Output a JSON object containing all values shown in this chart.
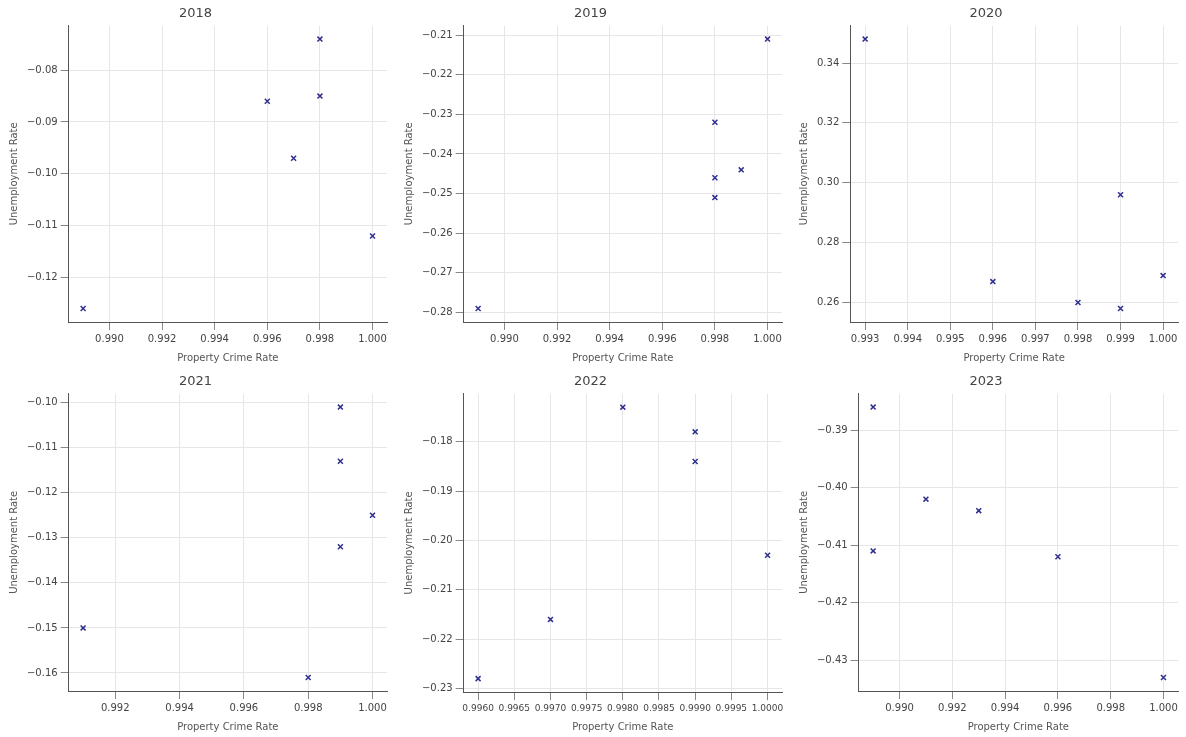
{
  "chart_data": [
    {
      "type": "scatter",
      "title": "2018",
      "xlabel": "Property Crime Rate",
      "ylabel": "Unemployment Rate",
      "marker": "cross",
      "grid": true,
      "legend": false,
      "series": [
        {
          "color": "#2f2f8f",
          "x": [
            0.998,
            0.996,
            0.998,
            0.997,
            1.0,
            0.989
          ],
          "values": [
            -0.074,
            -0.086,
            -0.085,
            -0.097,
            -0.112,
            -0.126
          ]
        }
      ],
      "xlim": [
        0.98845,
        1.00055
      ],
      "ylim": [
        -0.1286,
        -0.0714
      ],
      "xticks": [
        {
          "value": 0.99,
          "label": "0.990"
        },
        {
          "value": 0.992,
          "label": "0.992"
        },
        {
          "value": 0.994,
          "label": "0.994"
        },
        {
          "value": 0.996,
          "label": "0.996"
        },
        {
          "value": 0.998,
          "label": "0.998"
        },
        {
          "value": 1.0,
          "label": "1.000"
        }
      ],
      "yticks": [
        {
          "value": -0.12,
          "label": "−0.12"
        },
        {
          "value": -0.11,
          "label": "−0.11"
        },
        {
          "value": -0.1,
          "label": "−0.10"
        },
        {
          "value": -0.09,
          "label": "−0.09"
        },
        {
          "value": -0.08,
          "label": "−0.08"
        }
      ]
    },
    {
      "type": "scatter",
      "title": "2019",
      "xlabel": "Property Crime Rate",
      "ylabel": "Unemployment Rate",
      "marker": "cross",
      "grid": true,
      "legend": false,
      "series": [
        {
          "color": "#2f2f8f",
          "x": [
            1.0,
            0.998,
            0.998,
            0.998,
            0.999,
            0.989
          ],
          "values": [
            -0.211,
            -0.232,
            -0.246,
            -0.251,
            -0.244,
            -0.279
          ]
        }
      ],
      "xlim": [
        0.98845,
        1.00055
      ],
      "ylim": [
        -0.2824,
        -0.2076
      ],
      "xticks": [
        {
          "value": 0.99,
          "label": "0.990"
        },
        {
          "value": 0.992,
          "label": "0.992"
        },
        {
          "value": 0.994,
          "label": "0.994"
        },
        {
          "value": 0.996,
          "label": "0.996"
        },
        {
          "value": 0.998,
          "label": "0.998"
        },
        {
          "value": 1.0,
          "label": "1.000"
        }
      ],
      "yticks": [
        {
          "value": -0.28,
          "label": "−0.28"
        },
        {
          "value": -0.27,
          "label": "−0.27"
        },
        {
          "value": -0.26,
          "label": "−0.26"
        },
        {
          "value": -0.25,
          "label": "−0.25"
        },
        {
          "value": -0.24,
          "label": "−0.24"
        },
        {
          "value": -0.23,
          "label": "−0.23"
        },
        {
          "value": -0.22,
          "label": "−0.22"
        },
        {
          "value": -0.21,
          "label": "−0.21"
        }
      ]
    },
    {
      "type": "scatter",
      "title": "2020",
      "xlabel": "Property Crime Rate",
      "ylabel": "Unemployment Rate",
      "marker": "cross",
      "grid": true,
      "legend": false,
      "series": [
        {
          "color": "#2f2f8f",
          "x": [
            0.993,
            0.996,
            0.998,
            0.999,
            0.999,
            1.0
          ],
          "values": [
            0.348,
            0.267,
            0.26,
            0.296,
            0.258,
            0.269
          ]
        }
      ],
      "xlim": [
        0.99265,
        1.00035
      ],
      "ylim": [
        0.2535,
        0.3525
      ],
      "xticks": [
        {
          "value": 0.993,
          "label": "0.993"
        },
        {
          "value": 0.994,
          "label": "0.994"
        },
        {
          "value": 0.995,
          "label": "0.995"
        },
        {
          "value": 0.996,
          "label": "0.996"
        },
        {
          "value": 0.997,
          "label": "0.997"
        },
        {
          "value": 0.998,
          "label": "0.998"
        },
        {
          "value": 0.999,
          "label": "0.999"
        },
        {
          "value": 1.0,
          "label": "1.000"
        }
      ],
      "yticks": [
        {
          "value": 0.26,
          "label": "0.26"
        },
        {
          "value": 0.28,
          "label": "0.28"
        },
        {
          "value": 0.3,
          "label": "0.30"
        },
        {
          "value": 0.32,
          "label": "0.32"
        },
        {
          "value": 0.34,
          "label": "0.34"
        }
      ]
    },
    {
      "type": "scatter",
      "title": "2021",
      "xlabel": "Property Crime Rate",
      "ylabel": "Unemployment Rate",
      "marker": "cross",
      "grid": true,
      "legend": false,
      "series": [
        {
          "color": "#2f2f8f",
          "x": [
            0.999,
            0.999,
            1.0,
            0.999,
            0.991,
            0.998
          ],
          "values": [
            -0.101,
            -0.113,
            -0.125,
            -0.132,
            -0.15,
            -0.161
          ]
        }
      ],
      "xlim": [
        0.99055,
        1.00045
      ],
      "ylim": [
        -0.164,
        -0.098
      ],
      "xticks": [
        {
          "value": 0.992,
          "label": "0.992"
        },
        {
          "value": 0.994,
          "label": "0.994"
        },
        {
          "value": 0.996,
          "label": "0.996"
        },
        {
          "value": 0.998,
          "label": "0.998"
        },
        {
          "value": 1.0,
          "label": "1.000"
        }
      ],
      "yticks": [
        {
          "value": -0.16,
          "label": "−0.16"
        },
        {
          "value": -0.15,
          "label": "−0.15"
        },
        {
          "value": -0.14,
          "label": "−0.14"
        },
        {
          "value": -0.13,
          "label": "−0.13"
        },
        {
          "value": -0.12,
          "label": "−0.12"
        },
        {
          "value": -0.11,
          "label": "−0.11"
        },
        {
          "value": -0.1,
          "label": "−0.10"
        }
      ]
    },
    {
      "type": "scatter",
      "title": "2022",
      "xlabel": "Property Crime Rate",
      "ylabel": "Unemployment Rate",
      "marker": "cross",
      "grid": true,
      "legend": false,
      "series": [
        {
          "color": "#2f2f8f",
          "x": [
            0.998,
            0.999,
            0.999,
            1.0,
            0.997,
            0.996
          ],
          "values": [
            -0.173,
            -0.178,
            -0.184,
            -0.203,
            -0.216,
            -0.228
          ]
        }
      ],
      "xlim": [
        0.9958,
        1.0002
      ],
      "ylim": [
        -0.23075,
        -0.17025
      ],
      "xticks": [
        {
          "value": 0.996,
          "label": "0.9960"
        },
        {
          "value": 0.9965,
          "label": "0.9965"
        },
        {
          "value": 0.997,
          "label": "0.9970"
        },
        {
          "value": 0.9975,
          "label": "0.9975"
        },
        {
          "value": 0.998,
          "label": "0.9980"
        },
        {
          "value": 0.9985,
          "label": "0.9985"
        },
        {
          "value": 0.999,
          "label": "0.9990"
        },
        {
          "value": 0.9995,
          "label": "0.9995"
        },
        {
          "value": 1.0,
          "label": "1.0000"
        }
      ],
      "yticks": [
        {
          "value": -0.23,
          "label": "−0.23"
        },
        {
          "value": -0.22,
          "label": "−0.22"
        },
        {
          "value": -0.21,
          "label": "−0.21"
        },
        {
          "value": -0.2,
          "label": "−0.20"
        },
        {
          "value": -0.19,
          "label": "−0.19"
        },
        {
          "value": -0.18,
          "label": "−0.18"
        }
      ]
    },
    {
      "type": "scatter",
      "title": "2023",
      "xlabel": "Property Crime Rate",
      "ylabel": "Unemployment Rate",
      "marker": "cross",
      "grid": true,
      "legend": false,
      "series": [
        {
          "color": "#2f2f8f",
          "x": [
            0.989,
            0.991,
            0.993,
            0.989,
            0.996,
            1.0
          ],
          "values": [
            -0.386,
            -0.402,
            -0.404,
            -0.411,
            -0.412,
            -0.433
          ]
        }
      ],
      "xlim": [
        0.98845,
        1.00055
      ],
      "ylim": [
        -0.43535,
        -0.38365
      ],
      "xticks": [
        {
          "value": 0.99,
          "label": "0.990"
        },
        {
          "value": 0.992,
          "label": "0.992"
        },
        {
          "value": 0.994,
          "label": "0.994"
        },
        {
          "value": 0.996,
          "label": "0.996"
        },
        {
          "value": 0.998,
          "label": "0.998"
        },
        {
          "value": 1.0,
          "label": "1.000"
        }
      ],
      "yticks": [
        {
          "value": -0.43,
          "label": "−0.43"
        },
        {
          "value": -0.42,
          "label": "−0.42"
        },
        {
          "value": -0.41,
          "label": "−0.41"
        },
        {
          "value": -0.4,
          "label": "−0.40"
        },
        {
          "value": -0.39,
          "label": "−0.39"
        }
      ]
    }
  ]
}
